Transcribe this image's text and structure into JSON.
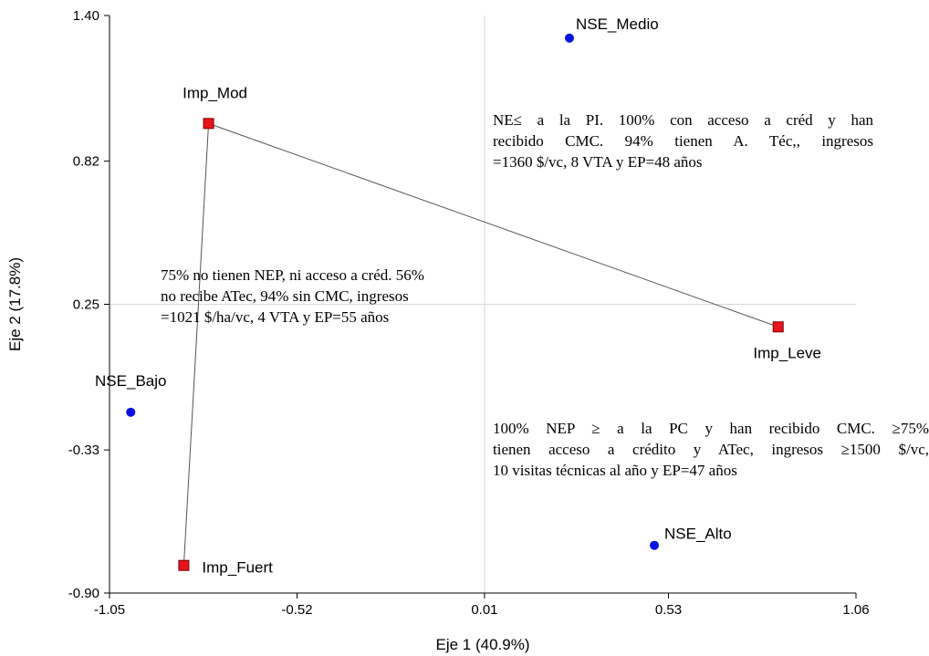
{
  "chart_data": {
    "type": "scatter",
    "xlabel": "Eje 1 (40.9%)",
    "ylabel": "Eje 2 (17.8%)",
    "xlim": [
      -1.05,
      1.06
    ],
    "ylim": [
      -0.9,
      1.4
    ],
    "x_ticks": [
      "-1.05",
      "-0.52",
      "0.01",
      "0.53",
      "1.06"
    ],
    "y_ticks": [
      "1.40",
      "0.82",
      "0.25",
      "-0.33",
      "-0.90"
    ],
    "reference_lines": {
      "x": 0.01,
      "y": 0.25
    },
    "series": [
      {
        "marker": "circle",
        "color": "#0a14e0",
        "points": [
          {
            "label": "NSE_Medio",
            "x": 0.25,
            "y": 1.31
          },
          {
            "label": "NSE_Bajo",
            "x": -0.99,
            "y": -0.18
          },
          {
            "label": "NSE_Alto",
            "x": 0.49,
            "y": -0.71
          }
        ]
      },
      {
        "marker": "square",
        "color": "#e8141c",
        "points": [
          {
            "label": "Imp_Mod",
            "x": -0.77,
            "y": 0.97
          },
          {
            "label": "Imp_Leve",
            "x": 0.84,
            "y": 0.16
          },
          {
            "label": "Imp_Fuert",
            "x": -0.84,
            "y": -0.79
          }
        ]
      }
    ],
    "connector": [
      "Imp_Fuert",
      "Imp_Mod",
      "Imp_Leve"
    ],
    "annotations": [
      {
        "id": "medio",
        "lines": [
          "NE≤ a la PI. 100%  con acceso a créd y han",
          "recibido CMC.  94% tienen A. Téc,, ingresos",
          "=1360  $/vc,  8 VTA y EP=48 años"
        ]
      },
      {
        "id": "bajo",
        "lines": [
          "75% no tienen NEP, ni acceso a créd. 56%",
          "no  recibe ATec, 94%  sin CMC, ingresos",
          "=1021  $/ha/vc,  4 VTA y EP=55 años"
        ]
      },
      {
        "id": "alto",
        "lines": [
          "100% NEP ≥ a la PC y han recibido CMC. ≥75%",
          "tienen acceso a crédito y ATec, ingresos ≥1500 $/vc,",
          "10  visitas técnicas al año y EP=47 años"
        ]
      }
    ]
  }
}
